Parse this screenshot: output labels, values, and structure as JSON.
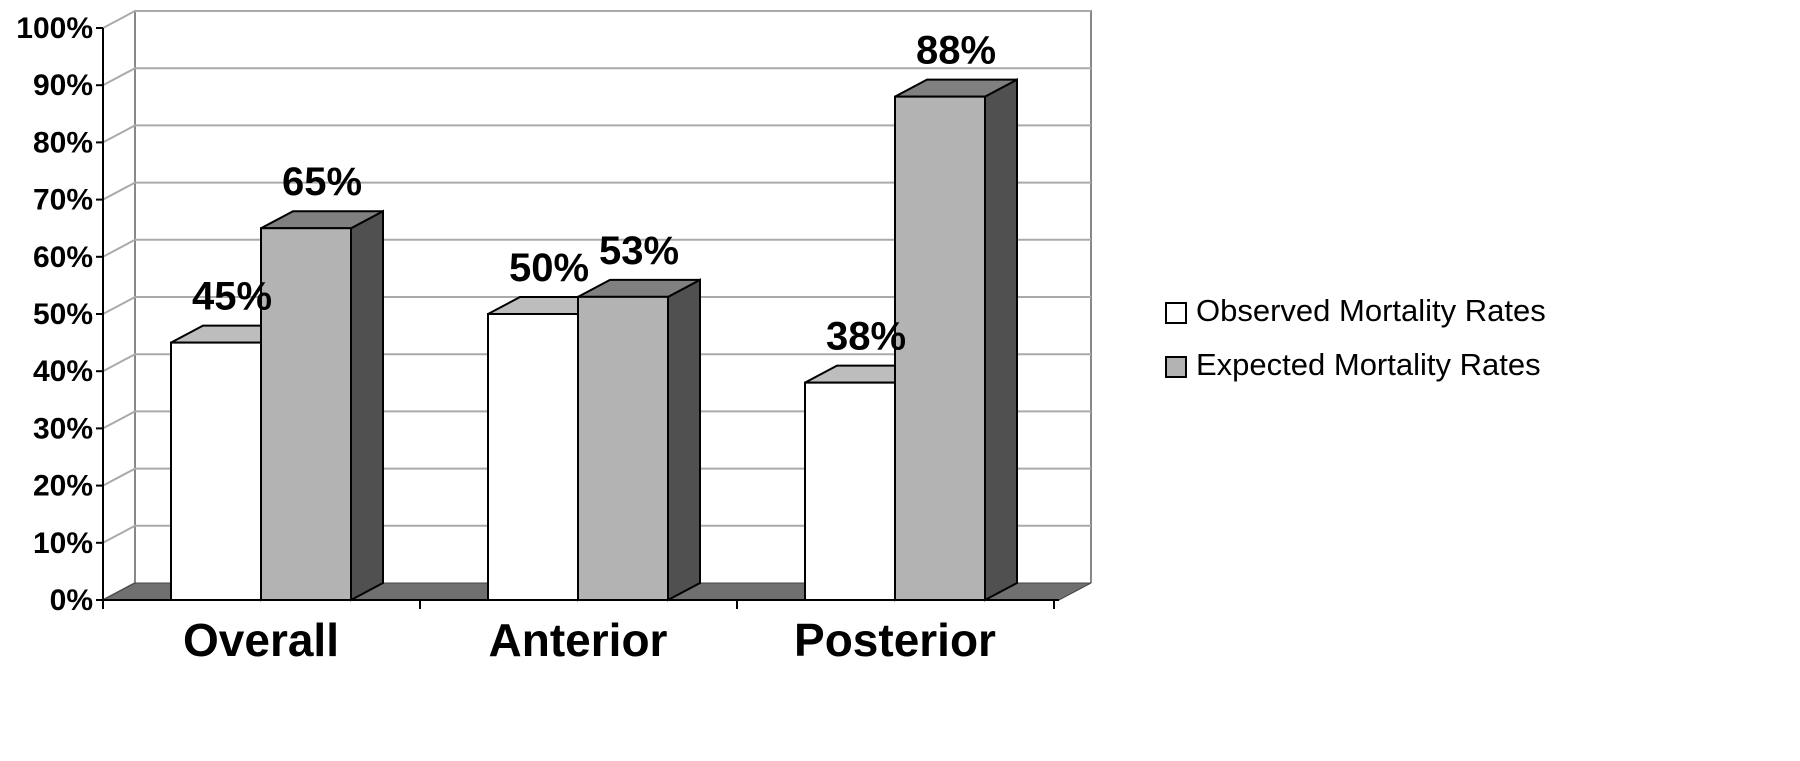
{
  "chart_data": {
    "type": "bar",
    "categories": [
      "Overall",
      "Anterior",
      "Posterior"
    ],
    "series": [
      {
        "name": "Observed Mortality Rates",
        "values": [
          45,
          50,
          38
        ],
        "labels": [
          "45%",
          "50%",
          "38%"
        ],
        "color": "#ffffff"
      },
      {
        "name": "Expected Mortality Rates",
        "values": [
          65,
          53,
          88
        ],
        "labels": [
          "65%",
          "53%",
          "88%"
        ],
        "color": "#b3b3b3"
      }
    ],
    "y_ticks": [
      "0%",
      "10%",
      "20%",
      "30%",
      "40%",
      "50%",
      "60%",
      "70%",
      "80%",
      "90%",
      "100%"
    ],
    "ylim": [
      0,
      100
    ],
    "grid": true,
    "legend_position": "right",
    "style": "3d-clustered-column",
    "colors": {
      "side": "#505050",
      "top_observed": "#bdbdbd",
      "top_expected": "#808080",
      "floor": "#707070",
      "grid": "#aaaaaa"
    }
  }
}
